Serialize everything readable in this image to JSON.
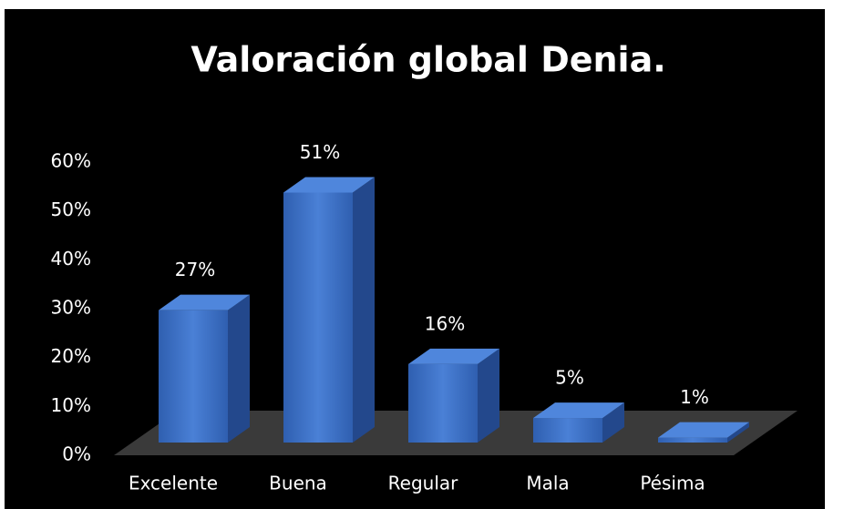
{
  "chart_data": {
    "type": "bar3d",
    "title": "Valoración global Denia.",
    "categories": [
      "Excelente",
      "Buena",
      "Regular",
      "Mala",
      "Pésima"
    ],
    "values": [
      27,
      51,
      16,
      5,
      1
    ],
    "value_labels": [
      "27%",
      "51%",
      "16%",
      "5%",
      "1%"
    ],
    "color": "#3b6fc6",
    "ylim": [
      0,
      60
    ],
    "yticks": [
      {
        "value": 0,
        "label": "0%"
      },
      {
        "value": 10,
        "label": "10%"
      },
      {
        "value": 20,
        "label": "20%"
      },
      {
        "value": 30,
        "label": "30%"
      },
      {
        "value": 40,
        "label": "40%"
      },
      {
        "value": 50,
        "label": "50%"
      },
      {
        "value": 60,
        "label": "60%"
      }
    ]
  }
}
